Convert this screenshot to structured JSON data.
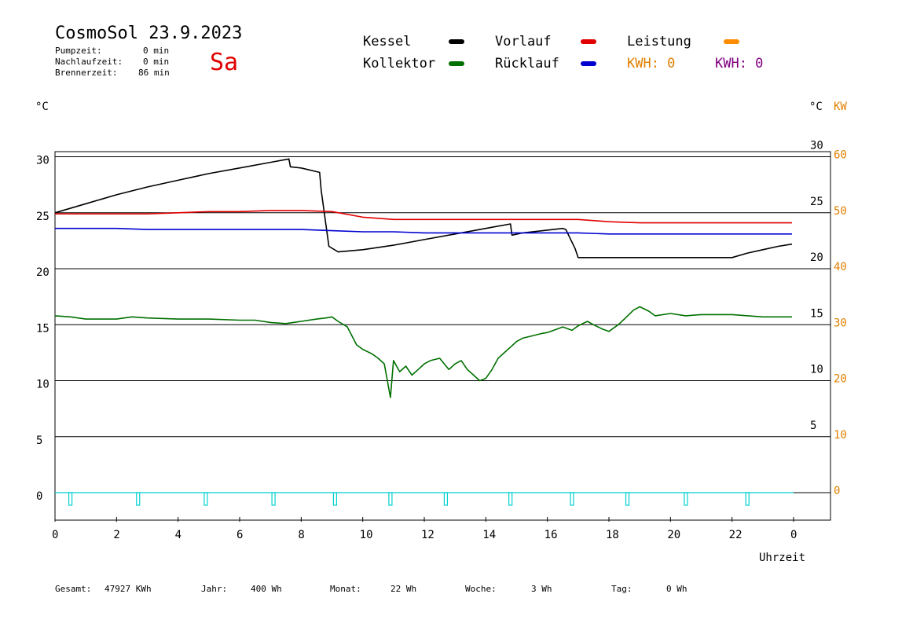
{
  "header": {
    "title": "CosmoSol 23.9.2023",
    "day": "Sa",
    "pump_label": "Pumpzeit:",
    "pump_value": "0 min",
    "nachlauf_label": "Nachlaufzeit:",
    "nachlauf_value": "0 min",
    "brenner_label": "Brennerzeit:",
    "brenner_value": "86 min"
  },
  "legend": {
    "kessel": "Kessel",
    "kollektor": "Kollektor",
    "vorlauf": "Vorlauf",
    "ruecklauf": "Rücklauf",
    "leistung": "Leistung",
    "kwh1": "KWH: 0",
    "kwh2": "KWH: 0"
  },
  "axes": {
    "left_unit": "°C",
    "right_unit": "°C",
    "right_unit2": "KW",
    "xlabel": "Uhrzeit"
  },
  "colors": {
    "kessel": "#000000",
    "kollektor": "#007000",
    "vorlauf": "#e00000",
    "ruecklauf": "#0000d0",
    "leistung": "#ff8c00",
    "pump": "#00d0d0",
    "kwh2": "#800080",
    "kw_axis": "#e08000",
    "day": "#e00000"
  },
  "footer": {
    "gesamt_label": "Gesamt:",
    "gesamt_value": "47927 KWh",
    "jahr_label": "Jahr:",
    "jahr_value": "400 Wh",
    "monat_label": "Monat:",
    "monat_value": "22 Wh",
    "woche_label": "Woche:",
    "woche_value": "3 Wh",
    "tag_label": "Tag:",
    "tag_value": "0 Wh"
  },
  "chart_data": {
    "type": "line",
    "xlabel": "Uhrzeit",
    "xlim": [
      0,
      24
    ],
    "ylim": [
      -2.5,
      30.5
    ],
    "x_ticks": [
      "0",
      "2",
      "4",
      "6",
      "8",
      "10",
      "12",
      "14",
      "16",
      "18",
      "20",
      "22",
      "0"
    ],
    "y_ticks_left": [
      0,
      5,
      10,
      15,
      20,
      25,
      30
    ],
    "y_ticks_right_temp": [
      5,
      10,
      15,
      20,
      25,
      30
    ],
    "y_ticks_right_kw": [
      0,
      10,
      20,
      30,
      40,
      50,
      60
    ],
    "series": [
      {
        "name": "Kessel",
        "x": [
          0,
          1,
          2,
          3,
          4,
          5,
          6,
          7,
          7.6,
          7.65,
          8,
          8.6,
          8.65,
          8.9,
          9.2,
          10,
          11,
          12,
          13,
          14,
          14.8,
          14.85,
          15.2,
          16.5,
          16.6,
          16.9,
          17,
          22,
          22.5,
          23,
          23.5,
          23.95
        ],
        "y": [
          25.0,
          25.8,
          26.6,
          27.3,
          27.9,
          28.5,
          29.0,
          29.5,
          29.8,
          29.1,
          29.0,
          28.6,
          27.0,
          22.0,
          21.5,
          21.7,
          22.1,
          22.6,
          23.1,
          23.6,
          24.0,
          23.0,
          23.2,
          23.6,
          23.5,
          21.8,
          21.0,
          21.0,
          21.4,
          21.7,
          22.0,
          22.2
        ]
      },
      {
        "name": "Vorlauf",
        "x": [
          0,
          1,
          2,
          3,
          4,
          5,
          6,
          7,
          8,
          9,
          10,
          11,
          12,
          13,
          14,
          15,
          16,
          17,
          18,
          19,
          20,
          21,
          22,
          23,
          23.95
        ],
        "y": [
          24.9,
          24.9,
          24.9,
          24.9,
          25.0,
          25.1,
          25.1,
          25.2,
          25.2,
          25.1,
          24.6,
          24.4,
          24.4,
          24.4,
          24.4,
          24.4,
          24.4,
          24.4,
          24.2,
          24.1,
          24.1,
          24.1,
          24.1,
          24.1,
          24.1
        ]
      },
      {
        "name": "Rücklauf",
        "x": [
          0,
          1,
          2,
          3,
          4,
          5,
          6,
          7,
          8,
          9,
          10,
          11,
          12,
          13,
          14,
          15,
          16,
          17,
          18,
          19,
          20,
          21,
          22,
          23,
          23.95
        ],
        "y": [
          23.6,
          23.6,
          23.6,
          23.5,
          23.5,
          23.5,
          23.5,
          23.5,
          23.5,
          23.4,
          23.3,
          23.3,
          23.2,
          23.2,
          23.2,
          23.2,
          23.2,
          23.2,
          23.1,
          23.1,
          23.1,
          23.1,
          23.1,
          23.1,
          23.1
        ]
      },
      {
        "name": "Kollektor",
        "x": [
          0,
          0.5,
          1,
          2,
          2.5,
          3,
          4,
          5,
          6,
          6.5,
          7,
          7.5,
          8,
          8.5,
          8.8,
          9,
          9.2,
          9.5,
          9.8,
          10,
          10.3,
          10.5,
          10.7,
          10.9,
          11,
          11.2,
          11.4,
          11.6,
          11.8,
          12,
          12.2,
          12.5,
          12.8,
          13,
          13.2,
          13.4,
          13.6,
          13.8,
          14,
          14.2,
          14.4,
          14.6,
          14.8,
          15,
          15.2,
          15.5,
          15.8,
          16,
          16.3,
          16.5,
          16.8,
          17,
          17.3,
          17.5,
          17.8,
          18,
          18.3,
          18.5,
          18.8,
          19,
          19.3,
          19.5,
          20,
          20.5,
          21,
          22,
          23,
          23.95
        ],
        "y": [
          15.8,
          15.7,
          15.5,
          15.5,
          15.7,
          15.6,
          15.5,
          15.5,
          15.4,
          15.4,
          15.2,
          15.1,
          15.3,
          15.5,
          15.6,
          15.7,
          15.3,
          14.8,
          13.2,
          12.8,
          12.4,
          12.0,
          11.5,
          8.5,
          11.8,
          10.8,
          11.3,
          10.5,
          11.0,
          11.5,
          11.8,
          12.0,
          11.0,
          11.5,
          11.8,
          11.0,
          10.5,
          10.0,
          10.2,
          11.0,
          12.0,
          12.5,
          13.0,
          13.5,
          13.8,
          14.0,
          14.2,
          14.3,
          14.6,
          14.8,
          14.5,
          14.9,
          15.3,
          15.0,
          14.6,
          14.4,
          15.0,
          15.5,
          16.3,
          16.6,
          16.2,
          15.8,
          16.0,
          15.8,
          15.9,
          15.9,
          15.7,
          15.7
        ]
      },
      {
        "name": "Leistung",
        "x": [],
        "y": []
      }
    ],
    "pump_pulses_x": [
      0.5,
      2.7,
      4.9,
      7.1,
      9.1,
      10.9,
      12.7,
      14.8,
      16.8,
      18.6,
      20.5,
      22.5
    ]
  }
}
